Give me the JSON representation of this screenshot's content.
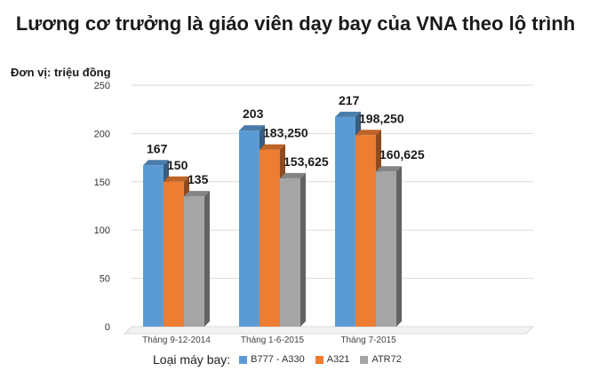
{
  "title": "Lương cơ trưởng là giáo viên dạy bay của VNA theo lộ trình",
  "unit_label": "Đơn vị: triệu đồng",
  "colors": {
    "B777 - A330": "#5b9bd5",
    "A321": "#ed7d31",
    "ATR72": "#a5a5a5"
  },
  "chart_data": {
    "type": "bar",
    "title": "Lương cơ trưởng là giáo viên dạy bay của VNA theo lộ trình",
    "ylabel": "Đơn vị: triệu đồng",
    "xlabel": "",
    "categories": [
      "Tháng 9-12-2014",
      "Tháng 1-6-2015",
      "Tháng 7-2015"
    ],
    "series": [
      {
        "name": "B777 - A330",
        "values": [
          167,
          203,
          217
        ],
        "labels": [
          "167",
          "203",
          "217"
        ]
      },
      {
        "name": "A321",
        "values": [
          150,
          183.25,
          198.25
        ],
        "labels": [
          "150",
          "183,250",
          "198,250"
        ]
      },
      {
        "name": "ATR72",
        "values": [
          135,
          153.625,
          160.625
        ],
        "labels": [
          "135",
          "153,625",
          "160,625"
        ]
      }
    ],
    "ylim": [
      0,
      250
    ],
    "yticks": [
      0,
      50,
      100,
      150,
      200,
      250
    ],
    "grid": true,
    "legend_title": "Loại máy bay:",
    "legend_position": "bottom"
  }
}
